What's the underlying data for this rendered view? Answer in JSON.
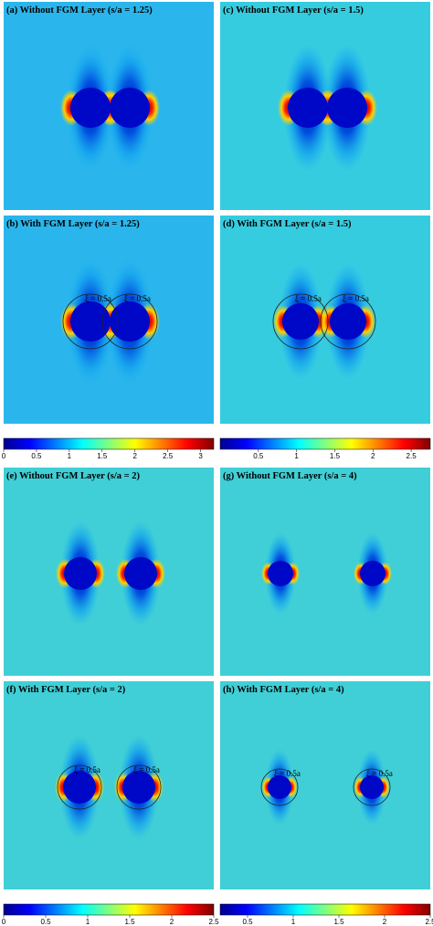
{
  "panels": [
    {
      "title": "(a) Without FGM  Layer (s/a = 1.25)"
    },
    {
      "title": "(c) Without FGM  Layer (s/a = 1.5)"
    },
    {
      "title": "(b) With FGM  Layer (s/a = 1.25)",
      "annotation": "ξ = 0.5a"
    },
    {
      "title": "(d) With FGM  Layer (s/a = 1.5)",
      "annotation": "ξ = 0.5a"
    },
    {
      "title": "(e) Without FGM  Layer (s/a = 2)"
    },
    {
      "title": "(g) Without FGM  Layer (s/a = 4)"
    },
    {
      "title": "(f) With FGM  Layer (s/a = 2)",
      "annotation": "ξ = 0.5a"
    },
    {
      "title": "(h) With FGM  Layer (s/a = 4)",
      "annotation": "ξ = 0.5a"
    }
  ],
  "colorbars": [
    {
      "lim": [
        0,
        3.2
      ],
      "ticks": [
        0,
        0.5,
        1,
        1.5,
        2,
        2.5,
        3
      ]
    },
    {
      "lim": [
        0,
        2.75
      ],
      "ticks": [
        0.5,
        1,
        1.5,
        2,
        2.5
      ]
    },
    {
      "lim": [
        0,
        2.5
      ],
      "ticks": [
        0,
        0.5,
        1,
        1.5,
        2,
        2.5
      ]
    },
    {
      "lim": [
        0.2,
        2.5
      ],
      "ticks": [
        0.5,
        1,
        1.5,
        2,
        2.5
      ]
    }
  ]
}
